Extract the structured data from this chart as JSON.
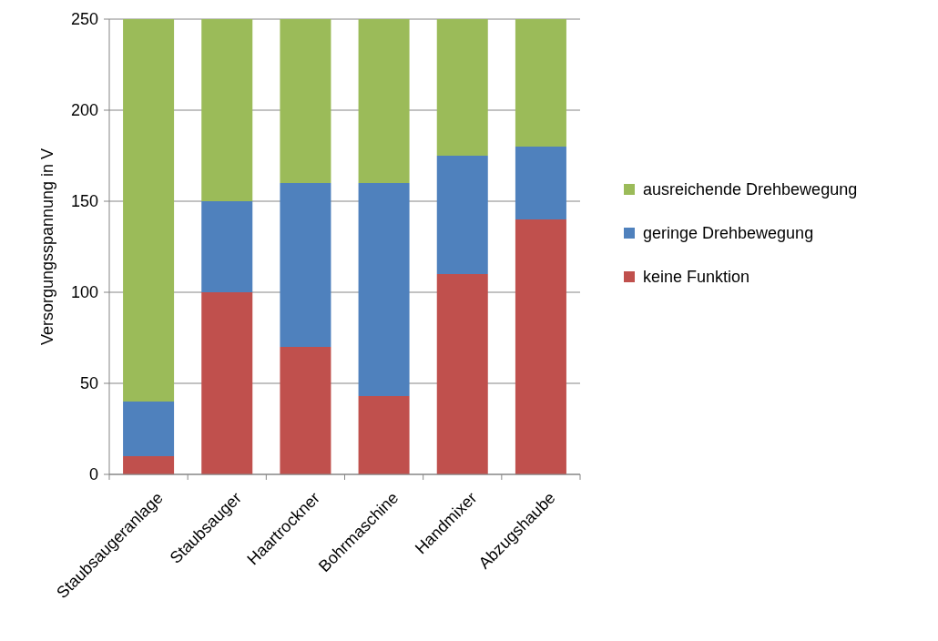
{
  "chart_data": {
    "type": "bar",
    "stacked": true,
    "ylabel": "Versorgungsspannung in V",
    "categories": [
      "Staubsaugeranlage",
      "Staubsauger",
      "Haartrockner",
      "Bohrmaschine",
      "Handmixer",
      "Abzugshaube"
    ],
    "series": [
      {
        "name": "keine Funktion",
        "color": "#c0504d",
        "values": [
          10,
          100,
          70,
          43,
          110,
          140
        ]
      },
      {
        "name": "geringe Drehbewegung",
        "color": "#4f81bd",
        "values": [
          30,
          50,
          90,
          117,
          65,
          40
        ]
      },
      {
        "name": "ausreichende Drehbewegung",
        "color": "#9bbb59",
        "values": [
          210,
          100,
          90,
          90,
          75,
          70
        ]
      }
    ],
    "ylim": [
      0,
      250
    ],
    "yticks": [
      0,
      50,
      100,
      150,
      200,
      250
    ],
    "grid": "y",
    "legend": "right"
  }
}
